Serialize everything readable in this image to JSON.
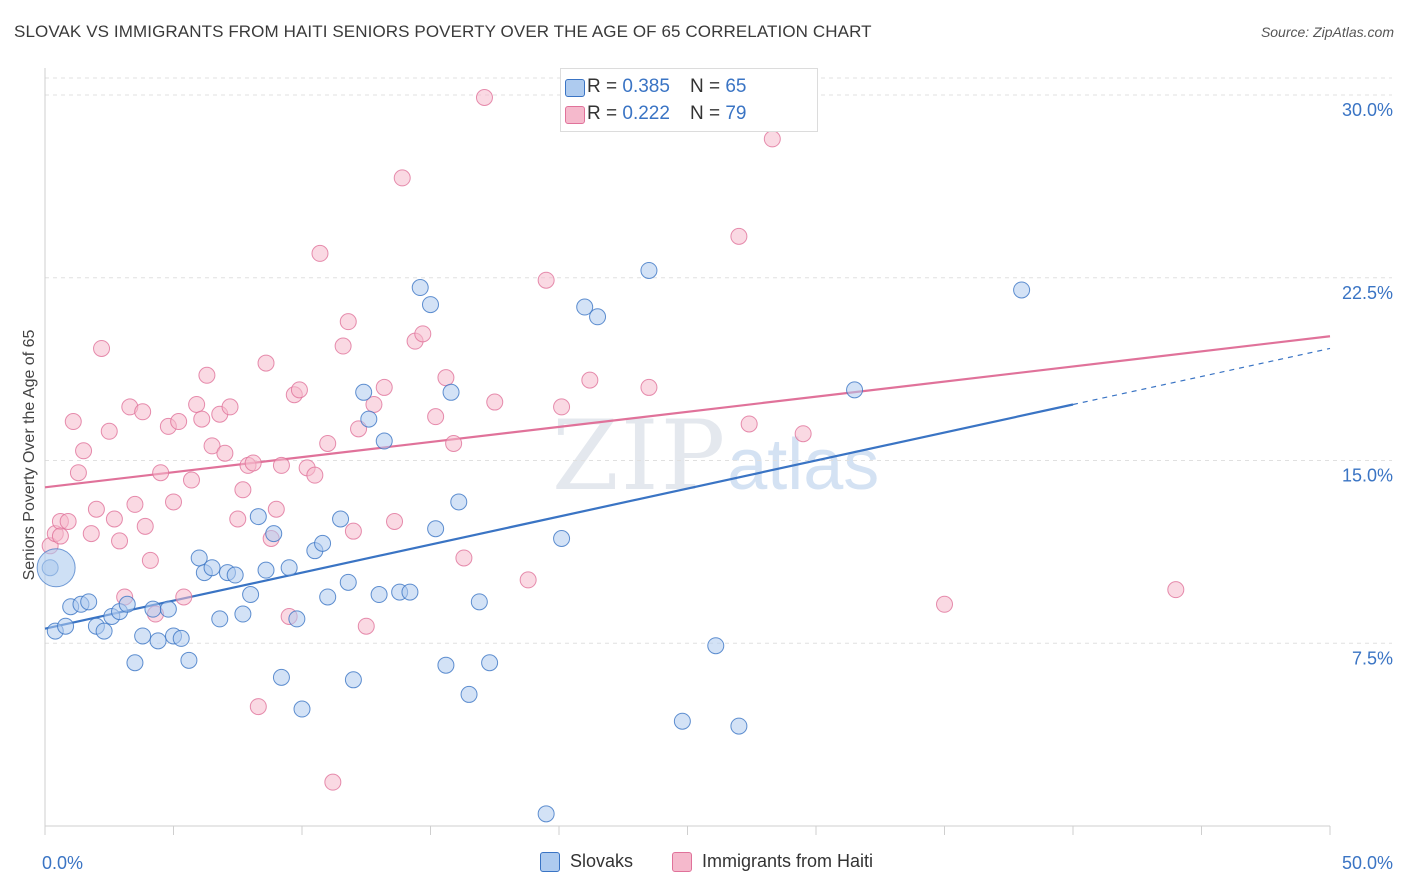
{
  "title": "SLOVAK VS IMMIGRANTS FROM HAITI SENIORS POVERTY OVER THE AGE OF 65 CORRELATION CHART",
  "source": "Source: ZipAtlas.com",
  "watermark": {
    "zip": "ZIP",
    "atlas": "atlas"
  },
  "legend_top": [
    {
      "r_label": "R =",
      "r_value": "0.385",
      "n_label": "N =",
      "n_value": "65"
    },
    {
      "r_label": "R =",
      "r_value": "0.222",
      "n_label": "N =",
      "n_value": "79"
    }
  ],
  "colors": {
    "blue": "#3a74c4",
    "blue_fill": "#aecbef",
    "pink": "#e0729a",
    "pink_fill": "#f5b9cc",
    "grid": "#e0e0e0",
    "tick_label": "#3a74c4"
  },
  "chart_data": {
    "type": "scatter",
    "xlabel": "",
    "ylabel": "Seniors Poverty Over the Age of 65",
    "xlim": [
      0,
      50
    ],
    "ylim": [
      0,
      30.7
    ],
    "x_tick_labels": [
      "0.0%",
      "50.0%"
    ],
    "y_ticks": [
      7.5,
      15.0,
      22.5,
      30.0
    ],
    "y_tick_labels": [
      "7.5%",
      "15.0%",
      "22.5%",
      "30.0%"
    ],
    "grid": true,
    "legend_position": "bottom",
    "series": [
      {
        "name": "Slovaks",
        "color": "#3a74c4",
        "trend": {
          "x": [
            0,
            40
          ],
          "y": [
            8.1,
            17.3
          ],
          "dashed_x": [
            40,
            50
          ],
          "dashed_y": [
            17.3,
            19.6
          ]
        },
        "points": [
          [
            0.2,
            10.6
          ],
          [
            0.4,
            8.0
          ],
          [
            0.8,
            8.2
          ],
          [
            1.0,
            9.0
          ],
          [
            1.4,
            9.1
          ],
          [
            1.7,
            9.2
          ],
          [
            2.0,
            8.2
          ],
          [
            2.3,
            8.0
          ],
          [
            2.6,
            8.6
          ],
          [
            2.9,
            8.8
          ],
          [
            3.2,
            9.1
          ],
          [
            3.5,
            6.7
          ],
          [
            3.8,
            7.8
          ],
          [
            4.2,
            8.9
          ],
          [
            4.4,
            7.6
          ],
          [
            4.8,
            8.9
          ],
          [
            5.0,
            7.8
          ],
          [
            5.3,
            7.7
          ],
          [
            5.6,
            6.8
          ],
          [
            6.0,
            11.0
          ],
          [
            6.2,
            10.4
          ],
          [
            6.5,
            10.6
          ],
          [
            6.8,
            8.5
          ],
          [
            7.1,
            10.4
          ],
          [
            7.4,
            10.3
          ],
          [
            7.7,
            8.7
          ],
          [
            8.0,
            9.5
          ],
          [
            8.3,
            12.7
          ],
          [
            8.6,
            10.5
          ],
          [
            8.9,
            12.0
          ],
          [
            9.2,
            6.1
          ],
          [
            9.5,
            10.6
          ],
          [
            9.8,
            8.5
          ],
          [
            10.0,
            4.8
          ],
          [
            10.5,
            11.3
          ],
          [
            10.8,
            11.6
          ],
          [
            11.0,
            9.4
          ],
          [
            11.5,
            12.6
          ],
          [
            11.8,
            10.0
          ],
          [
            12.0,
            6.0
          ],
          [
            12.4,
            17.8
          ],
          [
            12.6,
            16.7
          ],
          [
            13.0,
            9.5
          ],
          [
            13.2,
            15.8
          ],
          [
            13.8,
            9.6
          ],
          [
            14.2,
            9.6
          ],
          [
            14.6,
            22.1
          ],
          [
            15.0,
            21.4
          ],
          [
            15.2,
            12.2
          ],
          [
            15.6,
            6.6
          ],
          [
            15.8,
            17.8
          ],
          [
            16.1,
            13.3
          ],
          [
            16.5,
            5.4
          ],
          [
            16.9,
            9.2
          ],
          [
            17.3,
            6.7
          ],
          [
            19.5,
            0.5
          ],
          [
            20.1,
            11.8
          ],
          [
            21.0,
            21.3
          ],
          [
            21.5,
            20.9
          ],
          [
            23.5,
            22.8
          ],
          [
            24.8,
            4.3
          ],
          [
            26.1,
            7.4
          ],
          [
            27.0,
            4.1
          ],
          [
            31.5,
            17.9
          ],
          [
            38.0,
            22.0
          ]
        ],
        "large_point": [
          0.2,
          10.6
        ]
      },
      {
        "name": "Immigrants from Haiti",
        "color": "#e0729a",
        "trend": {
          "x": [
            0,
            50
          ],
          "y": [
            13.9,
            20.1
          ]
        },
        "points": [
          [
            0.2,
            11.5
          ],
          [
            0.4,
            12.0
          ],
          [
            0.6,
            12.5
          ],
          [
            0.9,
            12.5
          ],
          [
            1.1,
            16.6
          ],
          [
            1.3,
            14.5
          ],
          [
            1.5,
            15.4
          ],
          [
            1.8,
            12.0
          ],
          [
            2.0,
            13.0
          ],
          [
            2.2,
            19.6
          ],
          [
            2.5,
            16.2
          ],
          [
            2.7,
            12.6
          ],
          [
            2.9,
            11.7
          ],
          [
            3.1,
            9.4
          ],
          [
            3.3,
            17.2
          ],
          [
            3.5,
            13.2
          ],
          [
            3.8,
            17.0
          ],
          [
            3.9,
            12.3
          ],
          [
            4.1,
            10.9
          ],
          [
            4.3,
            8.7
          ],
          [
            4.5,
            14.5
          ],
          [
            4.8,
            16.4
          ],
          [
            5.0,
            13.3
          ],
          [
            5.2,
            16.6
          ],
          [
            5.4,
            9.4
          ],
          [
            5.7,
            14.2
          ],
          [
            5.9,
            17.3
          ],
          [
            6.1,
            16.7
          ],
          [
            6.3,
            18.5
          ],
          [
            6.5,
            15.6
          ],
          [
            6.8,
            16.9
          ],
          [
            7.0,
            15.3
          ],
          [
            7.2,
            17.2
          ],
          [
            7.5,
            12.6
          ],
          [
            7.7,
            13.8
          ],
          [
            7.9,
            14.8
          ],
          [
            8.1,
            14.9
          ],
          [
            8.3,
            4.9
          ],
          [
            8.6,
            19.0
          ],
          [
            8.8,
            11.8
          ],
          [
            9.0,
            13.0
          ],
          [
            9.2,
            14.8
          ],
          [
            9.5,
            8.6
          ],
          [
            9.7,
            17.7
          ],
          [
            9.9,
            17.9
          ],
          [
            10.2,
            14.7
          ],
          [
            10.5,
            14.4
          ],
          [
            10.7,
            23.5
          ],
          [
            11.0,
            15.7
          ],
          [
            11.2,
            1.8
          ],
          [
            11.6,
            19.7
          ],
          [
            11.8,
            20.7
          ],
          [
            12.0,
            12.1
          ],
          [
            12.2,
            16.3
          ],
          [
            12.5,
            8.2
          ],
          [
            12.8,
            17.3
          ],
          [
            13.2,
            18.0
          ],
          [
            13.6,
            12.5
          ],
          [
            13.9,
            26.6
          ],
          [
            14.4,
            19.9
          ],
          [
            14.7,
            20.2
          ],
          [
            15.2,
            16.8
          ],
          [
            15.6,
            18.4
          ],
          [
            15.9,
            15.7
          ],
          [
            16.3,
            11.0
          ],
          [
            17.1,
            29.9
          ],
          [
            17.5,
            17.4
          ],
          [
            18.8,
            10.1
          ],
          [
            19.5,
            22.4
          ],
          [
            20.1,
            17.2
          ],
          [
            21.2,
            18.3
          ],
          [
            23.5,
            18.0
          ],
          [
            27.0,
            24.2
          ],
          [
            27.4,
            16.5
          ],
          [
            28.3,
            28.2
          ],
          [
            29.5,
            16.1
          ],
          [
            35.0,
            9.1
          ],
          [
            44.0,
            9.7
          ],
          [
            0.6,
            11.9
          ]
        ]
      }
    ]
  },
  "bottom_legend": [
    {
      "label": "Slovaks"
    },
    {
      "label": "Immigrants from Haiti"
    }
  ]
}
